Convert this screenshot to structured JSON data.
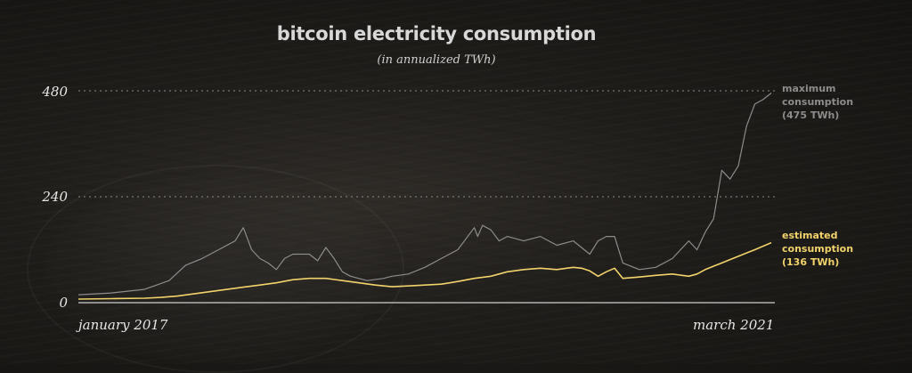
{
  "chart_data": {
    "type": "line",
    "title": "bitcoin electricity consumption",
    "subtitle": "(in annualized TWh)",
    "y_ticks": [
      "480",
      "240",
      "0"
    ],
    "ylim": [
      0,
      480
    ],
    "x_start_label": "january 2017",
    "x_end_label": "march 2021",
    "x_start": 2017.0,
    "x_end": 2021.2,
    "grid": "dotted horizontal at 240 and 480",
    "series": [
      {
        "name": "maximum consumption",
        "color": "#8c8c8c",
        "x": [
          2017.0,
          2017.2,
          2017.4,
          2017.55,
          2017.65,
          2017.75,
          2017.85,
          2017.95,
          2018.0,
          2018.05,
          2018.1,
          2018.15,
          2018.2,
          2018.25,
          2018.3,
          2018.4,
          2018.45,
          2018.5,
          2018.55,
          2018.6,
          2018.65,
          2018.75,
          2018.85,
          2018.9,
          2019.0,
          2019.1,
          2019.2,
          2019.3,
          2019.4,
          2019.42,
          2019.45,
          2019.5,
          2019.55,
          2019.6,
          2019.65,
          2019.7,
          2019.8,
          2019.9,
          2020.0,
          2020.1,
          2020.15,
          2020.2,
          2020.25,
          2020.3,
          2020.4,
          2020.5,
          2020.6,
          2020.7,
          2020.75,
          2020.8,
          2020.85,
          2020.9,
          2020.95,
          2021.0,
          2021.05,
          2021.1,
          2021.15,
          2021.2
        ],
        "values": [
          18,
          22,
          30,
          50,
          85,
          100,
          120,
          140,
          170,
          120,
          100,
          90,
          75,
          100,
          110,
          110,
          95,
          125,
          100,
          70,
          60,
          50,
          55,
          60,
          65,
          80,
          100,
          120,
          170,
          150,
          175,
          165,
          140,
          150,
          145,
          140,
          150,
          130,
          140,
          110,
          140,
          150,
          150,
          90,
          75,
          80,
          100,
          140,
          120,
          160,
          190,
          300,
          280,
          310,
          400,
          450,
          460,
          475
        ]
      },
      {
        "name": "estimated consumption",
        "color": "#f2d36b",
        "x": [
          2017.0,
          2017.2,
          2017.4,
          2017.5,
          2017.6,
          2017.7,
          2017.8,
          2017.9,
          2018.0,
          2018.1,
          2018.2,
          2018.3,
          2018.4,
          2018.5,
          2018.6,
          2018.7,
          2018.8,
          2018.9,
          2019.0,
          2019.1,
          2019.2,
          2019.3,
          2019.4,
          2019.5,
          2019.6,
          2019.7,
          2019.8,
          2019.9,
          2020.0,
          2020.05,
          2020.1,
          2020.15,
          2020.2,
          2020.25,
          2020.3,
          2020.4,
          2020.5,
          2020.6,
          2020.7,
          2020.75,
          2020.8,
          2020.9,
          2021.0,
          2021.1,
          2021.2
        ],
        "values": [
          8,
          9,
          10,
          12,
          15,
          20,
          25,
          30,
          35,
          40,
          45,
          52,
          55,
          55,
          50,
          45,
          40,
          36,
          38,
          40,
          42,
          48,
          55,
          60,
          70,
          75,
          78,
          75,
          80,
          78,
          72,
          60,
          70,
          78,
          55,
          58,
          62,
          65,
          60,
          65,
          75,
          90,
          105,
          120,
          136
        ]
      }
    ],
    "annotations": [
      {
        "lines": [
          "maximum",
          "consumption",
          "(475 TWh)"
        ],
        "color": "#8c8c8c"
      },
      {
        "lines": [
          "estimated",
          "consumption",
          "(136 TWh)"
        ],
        "color": "#f2d36b"
      }
    ]
  }
}
